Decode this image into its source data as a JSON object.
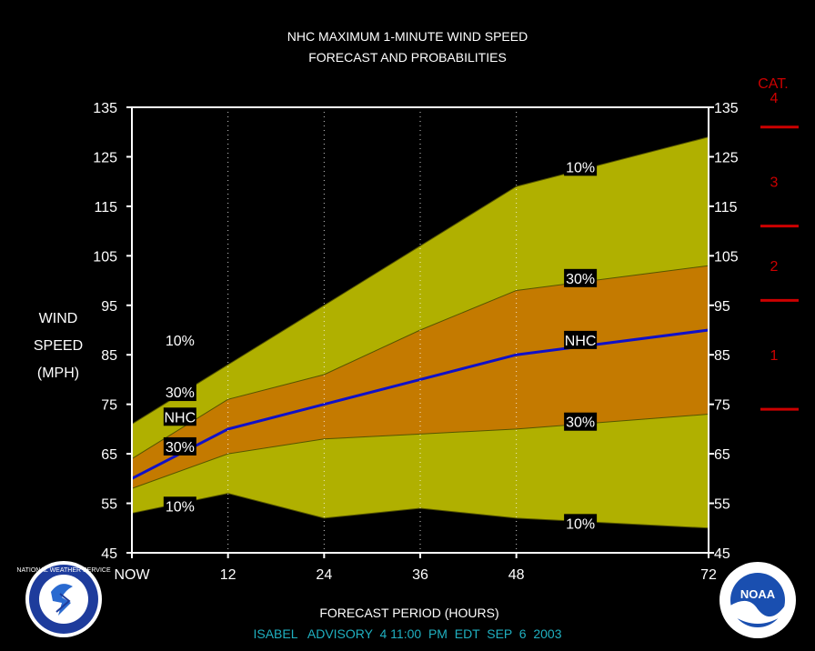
{
  "chart_data": {
    "type": "area",
    "title_line1": "NHC MAXIMUM 1-MINUTE WIND SPEED",
    "title_line2": "FORECAST AND PROBABILITIES",
    "ylabel": [
      "WIND",
      "SPEED",
      "(MPH)"
    ],
    "xlabel": "FORECAST PERIOD (HOURS)",
    "footer": "ISABEL   ADVISORY  4 11:00  PM  EDT  SEP  6  2003",
    "ylim": [
      45,
      135
    ],
    "xlim": [
      0,
      72
    ],
    "y_ticks": [
      "45",
      "55",
      "65",
      "75",
      "85",
      "95",
      "105",
      "115",
      "125",
      "135"
    ],
    "x_ticks": [
      {
        "x": 0,
        "label": "NOW"
      },
      {
        "x": 12,
        "label": "12"
      },
      {
        "x": 24,
        "label": "24"
      },
      {
        "x": 36,
        "label": "36"
      },
      {
        "x": 48,
        "label": "48"
      },
      {
        "x": 72,
        "label": "72"
      }
    ],
    "x": [
      0,
      12,
      24,
      36,
      48,
      72
    ],
    "series": [
      {
        "name": "10%",
        "values": [
          71,
          83,
          95,
          107,
          119,
          129
        ]
      },
      {
        "name": "30%",
        "values": [
          64,
          76,
          81,
          90,
          98,
          103
        ]
      },
      {
        "name": "NHC",
        "values": [
          60,
          70,
          75,
          80,
          85,
          90
        ]
      },
      {
        "name": "30%",
        "values": [
          58,
          65,
          68,
          69,
          70,
          73
        ]
      },
      {
        "name": "10%",
        "values": [
          53,
          57,
          52,
          54,
          52,
          50
        ]
      }
    ],
    "labels": [
      {
        "text": "10%",
        "x": 6,
        "y": 88
      },
      {
        "text": "30%",
        "x": 6,
        "y": 77.5
      },
      {
        "text": "NHC",
        "x": 6,
        "y": 72.5
      },
      {
        "text": "30%",
        "x": 6,
        "y": 66.5
      },
      {
        "text": "10%",
        "x": 6,
        "y": 54.5
      },
      {
        "text": "10%",
        "x": 56,
        "y": 123
      },
      {
        "text": "30%",
        "x": 56,
        "y": 100.5
      },
      {
        "text": "NHC",
        "x": 56,
        "y": 88
      },
      {
        "text": "30%",
        "x": 56,
        "y": 71.5
      },
      {
        "text": "10%",
        "x": 56,
        "y": 51
      }
    ],
    "category_header": "CAT.",
    "categories": [
      {
        "label": "1",
        "y": 85
      },
      {
        "label": "2",
        "y": 103
      },
      {
        "label": "3",
        "y": 120
      },
      {
        "label": "4",
        "y": 137
      }
    ],
    "category_thresholds": [
      74,
      96,
      111,
      131
    ],
    "colors": {
      "outer_band": "#b0b000",
      "inner_band": "#c47a00",
      "nhc_line": "#1010c8",
      "category": "#cc0000",
      "background": "#000000",
      "text": "#ffffff",
      "footer": "#20b0c0"
    }
  },
  "logos": {
    "left": {
      "name": "nws-logo",
      "text": "NATIONAL WEATHER SERVICE"
    },
    "right": {
      "name": "noaa-logo",
      "text": "NOAA"
    }
  }
}
